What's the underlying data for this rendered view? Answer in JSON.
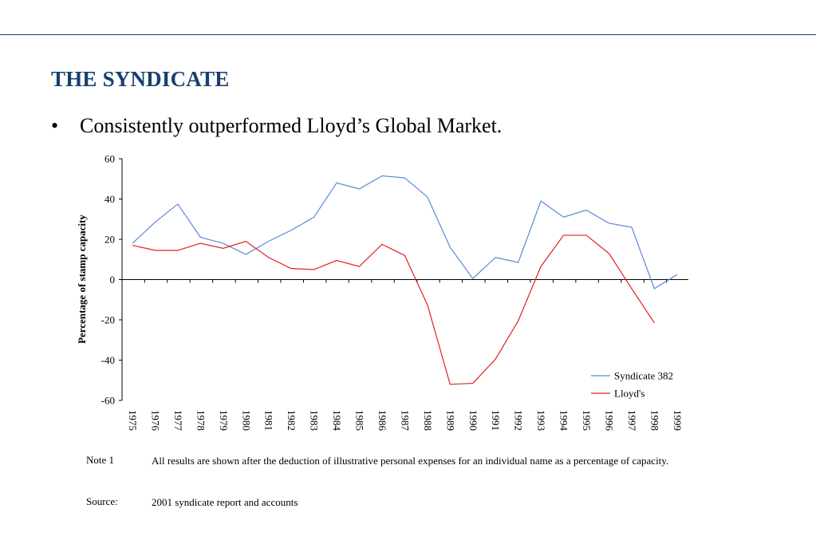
{
  "slide": {
    "title": "THE SYNDICATE",
    "bullet_symbol": "•",
    "bullet_text": "Consistently outperformed Lloyd’s Global Market."
  },
  "chart_data": {
    "type": "line",
    "title": "",
    "xlabel": "",
    "ylabel": "Percentage of stamp capacity",
    "ylim": [
      -60,
      60
    ],
    "yticks": [
      60,
      40,
      20,
      0,
      -20,
      -40,
      -60
    ],
    "categories": [
      "1975",
      "1976",
      "1977",
      "1978",
      "1979",
      "1980",
      "1981",
      "1982",
      "1983",
      "1984",
      "1985",
      "1986",
      "1987",
      "1988",
      "1989",
      "1990",
      "1991",
      "1992",
      "1993",
      "1994",
      "1995",
      "1996",
      "1997",
      "1998",
      "1999"
    ],
    "legend_position": "bottom-right",
    "grid": false,
    "series": [
      {
        "name": "Syndicate 382",
        "color": "#5b86d9",
        "values": [
          18,
          28.5,
          37.5,
          21,
          18,
          12.5,
          19,
          24.5,
          31,
          48,
          45,
          51.5,
          50.5,
          41,
          16,
          0.5,
          11,
          8.5,
          39,
          31,
          34.5,
          28,
          26,
          -4.5,
          2.5
        ]
      },
      {
        "name": "Lloyd's",
        "color": "#e02020",
        "values": [
          17,
          14.5,
          14.5,
          18,
          15.5,
          19,
          11,
          5.5,
          5,
          9.5,
          6.5,
          17.5,
          12,
          -12.5,
          -52,
          -51.5,
          -39.5,
          -20.5,
          6.5,
          22,
          22,
          13,
          -4.5,
          -21.5,
          null
        ]
      }
    ]
  },
  "notes": [
    {
      "label": "Note 1",
      "text": "All results are shown after the deduction of illustrative personal expenses for an individual name as a percentage of capacity."
    },
    {
      "label": "Source:",
      "text": "2001 syndicate report and  accounts"
    }
  ]
}
